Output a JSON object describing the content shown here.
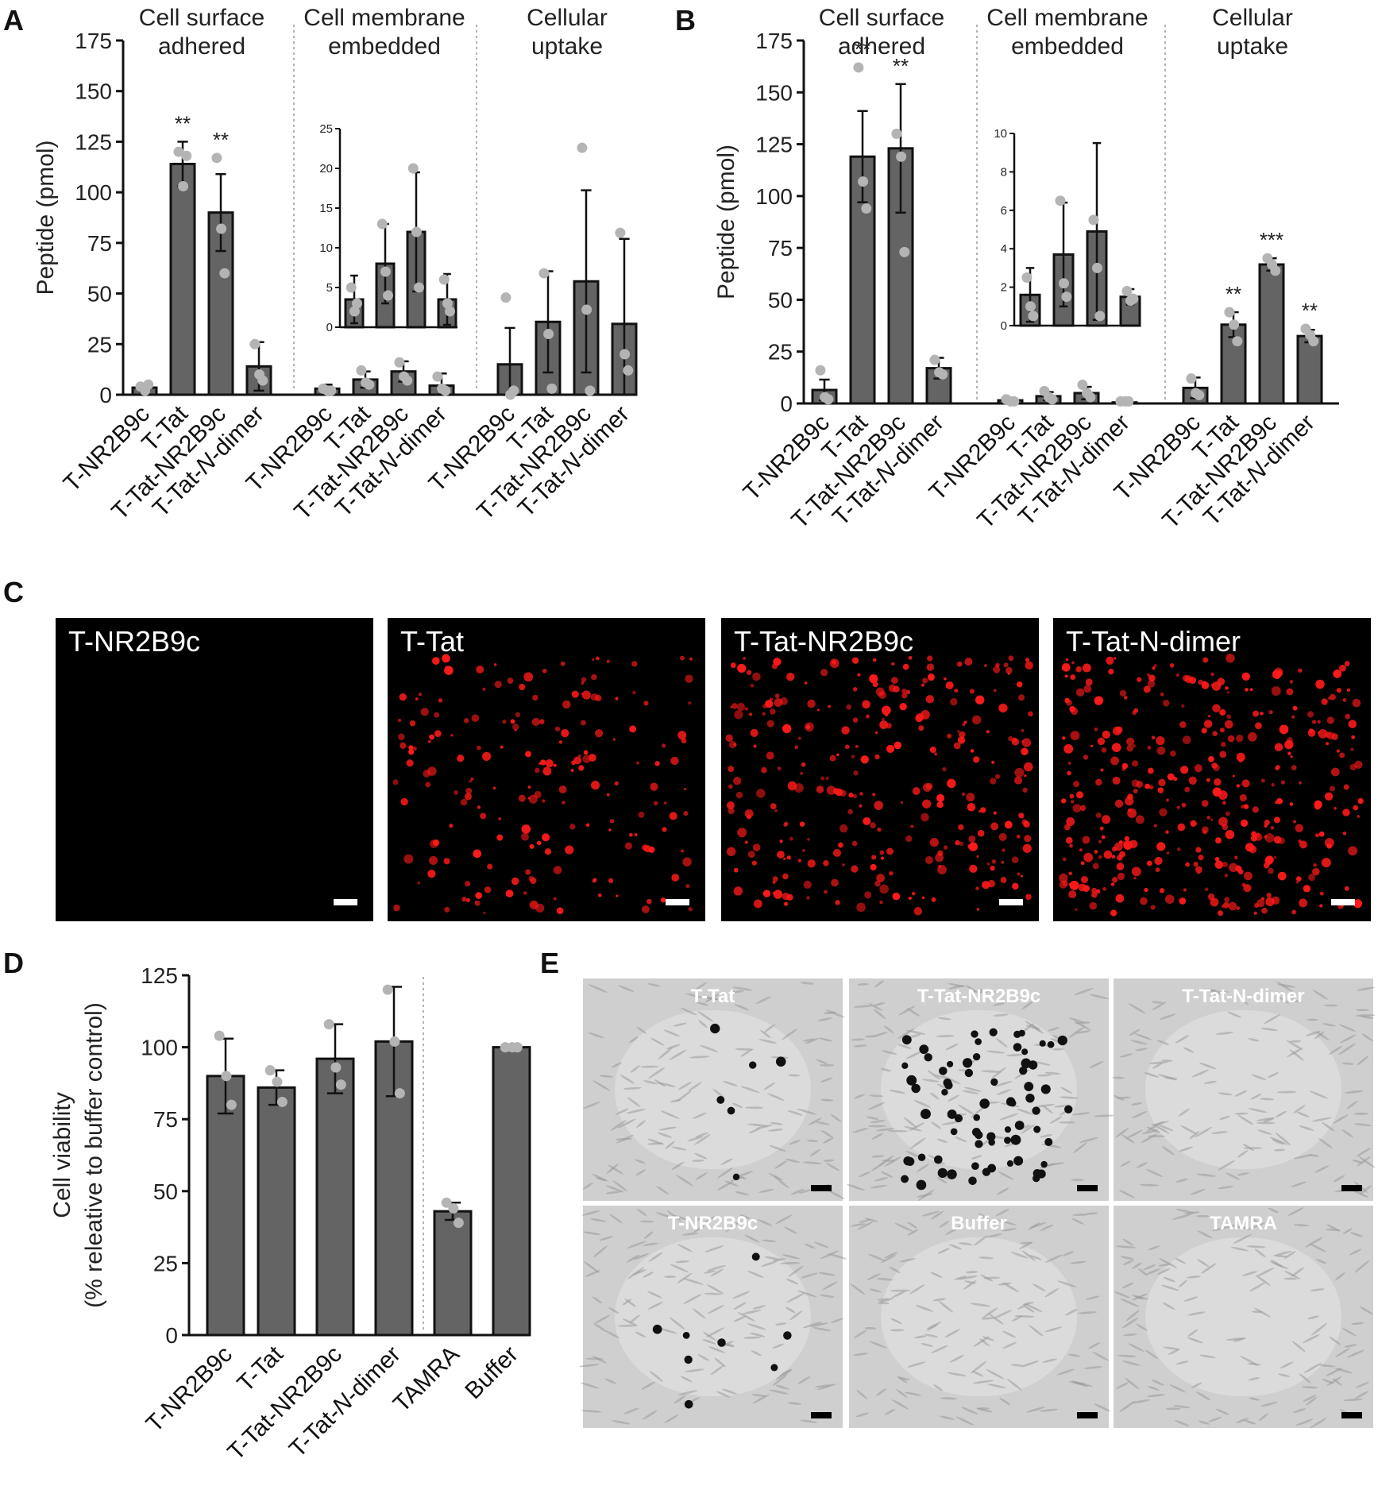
{
  "panel_letters": [
    "A",
    "B",
    "C",
    "D",
    "E"
  ],
  "chart_data": [
    {
      "panel": "A",
      "type": "bar",
      "ylabel": "Peptide (pmol)",
      "ylim": [
        0,
        175
      ],
      "yticks": [
        0,
        25,
        50,
        75,
        100,
        125,
        150,
        175
      ],
      "categories": [
        "T-NR2B9c",
        "T-Tat",
        "T-Tat-NR2B9c",
        "T-Tat-N-dimer"
      ],
      "groups": [
        {
          "title": "Cell surface adhered",
          "values": [
            3.5,
            114,
            90,
            14
          ],
          "errors": [
            2,
            11,
            19,
            12
          ],
          "points": [
            [
              4,
              2,
              5
            ],
            [
              120,
              103,
              118
            ],
            [
              117,
              82,
              60
            ],
            [
              25,
              10,
              7
            ]
          ],
          "stars": [
            "",
            "**",
            "**",
            ""
          ]
        },
        {
          "title": "Cell membrane embedded",
          "values": [
            3,
            7.5,
            11.5,
            4.5
          ],
          "errors": [
            2,
            4,
            5,
            6
          ],
          "points": [
            [
              3,
              2,
              2
            ],
            [
              12,
              6,
              5
            ],
            [
              16,
              9,
              7
            ],
            [
              9,
              3,
              2
            ]
          ],
          "stars": [
            "",
            "",
            "",
            ""
          ]
        },
        {
          "title": "Cellular uptake",
          "values": [
            15,
            36,
            56,
            35
          ],
          "errors": [
            18,
            25,
            45,
            42
          ],
          "points": [
            [
              48,
              0,
              2
            ],
            [
              60,
              30,
              3
            ],
            [
              122,
              42,
              2
            ],
            [
              80,
              20,
              12
            ]
          ],
          "stars": [
            "",
            "",
            "",
            ""
          ]
        }
      ],
      "inset": {
        "ylim": [
          0,
          25
        ],
        "yticks": [
          0,
          5,
          10,
          15,
          20,
          25
        ],
        "values": [
          3.5,
          8,
          12,
          3.5
        ],
        "errors": [
          3,
          5,
          7.5,
          3.2
        ],
        "points": [
          [
            5,
            2,
            3
          ],
          [
            13,
            7,
            4
          ],
          [
            20,
            12,
            5
          ],
          [
            6,
            3,
            2
          ]
        ]
      }
    },
    {
      "panel": "B",
      "type": "bar",
      "ylabel": "Peptide (pmol)",
      "ylim": [
        0,
        175
      ],
      "yticks": [
        0,
        25,
        50,
        75,
        100,
        125,
        150,
        175
      ],
      "categories": [
        "T-NR2B9c",
        "T-Tat",
        "T-Tat-NR2B9c",
        "T-Tat-N-dimer"
      ],
      "groups": [
        {
          "title": "Cell surface adhered",
          "values": [
            6.5,
            119,
            123,
            17
          ],
          "errors": [
            5,
            22,
            31,
            5
          ],
          "points": [
            [
              16,
              3,
              2
            ],
            [
              162,
              107,
              94
            ],
            [
              130,
              119,
              73
            ],
            [
              21,
              15,
              14
            ]
          ],
          "stars": [
            "",
            "**",
            "**",
            ""
          ]
        },
        {
          "title": "Cell membrane embedded",
          "values": [
            1.5,
            3.5,
            5,
            0.5
          ],
          "errors": [
            1,
            2,
            3,
            0.5
          ],
          "points": [
            [
              2,
              1,
              1
            ],
            [
              6,
              3,
              2
            ],
            [
              9,
              5,
              3
            ],
            [
              1,
              1,
              1
            ]
          ],
          "stars": [
            "",
            "",
            "",
            ""
          ]
        },
        {
          "title": "Cellular uptake",
          "values": [
            7.5,
            38,
            67,
            32.5
          ],
          "errors": [
            5,
            6,
            3,
            3
          ],
          "points": [
            [
              12,
              5,
              4
            ],
            [
              44,
              38,
              30
            ],
            [
              70,
              67,
              64
            ],
            [
              36,
              33,
              30
            ]
          ],
          "stars": [
            "",
            "**",
            "***",
            "**"
          ]
        }
      ],
      "inset": {
        "ylim": [
          0,
          10
        ],
        "yticks": [
          0,
          2,
          4,
          6,
          8,
          10
        ],
        "values": [
          1.6,
          3.7,
          4.9,
          1.5
        ],
        "errors": [
          1.4,
          2.7,
          4.6,
          0.4
        ],
        "points": [
          [
            2.5,
            1,
            0.5
          ],
          [
            6.5,
            2.2,
            1.5
          ],
          [
            5.5,
            3,
            0.5
          ],
          [
            1.8,
            1.3,
            1.4
          ]
        ]
      }
    },
    {
      "panel": "D",
      "type": "bar",
      "ylabel": [
        "Cell viability",
        "(% releative to buffer control)"
      ],
      "ylim": [
        0,
        125
      ],
      "yticks": [
        0,
        25,
        50,
        75,
        100,
        125
      ],
      "categories": [
        "T-NR2B9c",
        "T-Tat",
        "T-Tat-NR2B9c",
        "T-Tat-N-dimer",
        "TAMRA",
        "Buffer"
      ],
      "values": [
        90,
        86,
        96,
        102,
        43,
        100
      ],
      "errors": [
        13,
        6,
        12,
        19,
        3,
        0
      ],
      "points": [
        [
          104,
          90,
          80
        ],
        [
          92,
          88,
          81
        ],
        [
          108,
          93,
          87
        ],
        [
          120,
          102,
          84
        ],
        [
          46,
          44,
          39
        ],
        [
          100,
          100,
          100
        ]
      ],
      "stars": [
        "",
        "",
        "",
        "",
        "",
        ""
      ]
    }
  ],
  "microscopy": {
    "panel": "C",
    "labels": [
      "T-NR2B9c",
      "T-Tat",
      "T-Tat-NR2B9c",
      "T-Tat-N-dimer"
    ],
    "densities": [
      0,
      0.45,
      0.7,
      0.9
    ],
    "color": "#ff1a1a"
  },
  "brightfield": {
    "panel": "E",
    "labels": [
      "T-Tat",
      "T-Tat-NR2B9c",
      "T-Tat-N-dimer",
      "T-NR2B9c",
      "Buffer",
      "TAMRA"
    ],
    "dead_cells": [
      6,
      70,
      0,
      8,
      0,
      0
    ]
  },
  "colors": {
    "bar": "#646464",
    "point": "#b4b4b4",
    "stroke": "#111111",
    "red": "#ff1a1a",
    "bf": "#cfcfcf"
  }
}
